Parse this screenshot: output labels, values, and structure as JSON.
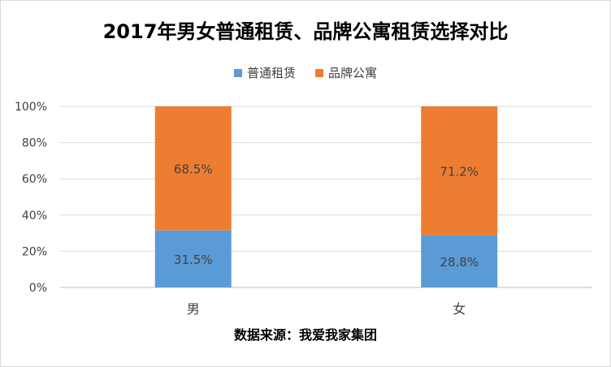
{
  "chart_data": {
    "type": "bar",
    "stacked": true,
    "title": "2017年男女普通租赁、品牌公寓租赁选择对比",
    "categories": [
      "男",
      "女"
    ],
    "series": [
      {
        "name": "普通租赁",
        "values": [
          31.5,
          28.8
        ],
        "labels": [
          "31.5%",
          "28.8%"
        ],
        "color": "#5b9bd5"
      },
      {
        "name": "品牌公寓",
        "values": [
          68.5,
          71.2
        ],
        "labels": [
          "68.5%",
          "71.2%"
        ],
        "color": "#ed7d31"
      }
    ],
    "ylim": [
      0,
      100
    ],
    "yticks": [
      "0%",
      "20%",
      "40%",
      "60%",
      "80%",
      "100%"
    ],
    "grid": true,
    "legend": "top",
    "note": "数据来源：我爱我家集团"
  }
}
